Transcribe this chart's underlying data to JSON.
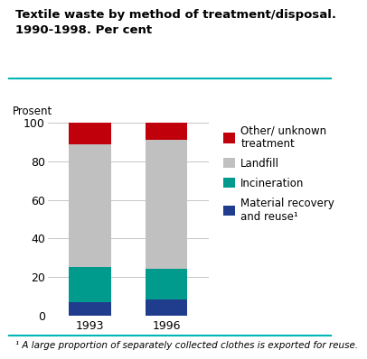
{
  "title_line1": "Textile waste by method of treatment/disposal.",
  "title_line2": "1990-1998. Per cent",
  "ylabel": "Prosent",
  "footnote": "¹ A large proportion of separately collected clothes is exported for reuse.",
  "categories": [
    "1993",
    "1996"
  ],
  "segment_order": [
    "Material recovery\nand reuse¹",
    "Incineration",
    "Landfill",
    "Other/ unknown\ntreatment"
  ],
  "segments": {
    "Material recovery\nand reuse¹": {
      "values": [
        7,
        8
      ],
      "color": "#1f3d8c"
    },
    "Incineration": {
      "values": [
        18,
        16
      ],
      "color": "#009b8d"
    },
    "Landfill": {
      "values": [
        64,
        67
      ],
      "color": "#c0c0c0"
    },
    "Other/ unknown\ntreatment": {
      "values": [
        11,
        9
      ],
      "color": "#c0000a"
    }
  },
  "ylim": [
    0,
    100
  ],
  "yticks": [
    0,
    20,
    40,
    60,
    80,
    100
  ],
  "bar_width": 0.55,
  "title_fontsize": 9.5,
  "ylabel_fontsize": 8.5,
  "tick_fontsize": 9,
  "legend_fontsize": 8.5,
  "footnote_fontsize": 7.5,
  "teal_line_color": "#00b5b5",
  "grid_color": "#b0b0b0",
  "background_color": "#ffffff"
}
